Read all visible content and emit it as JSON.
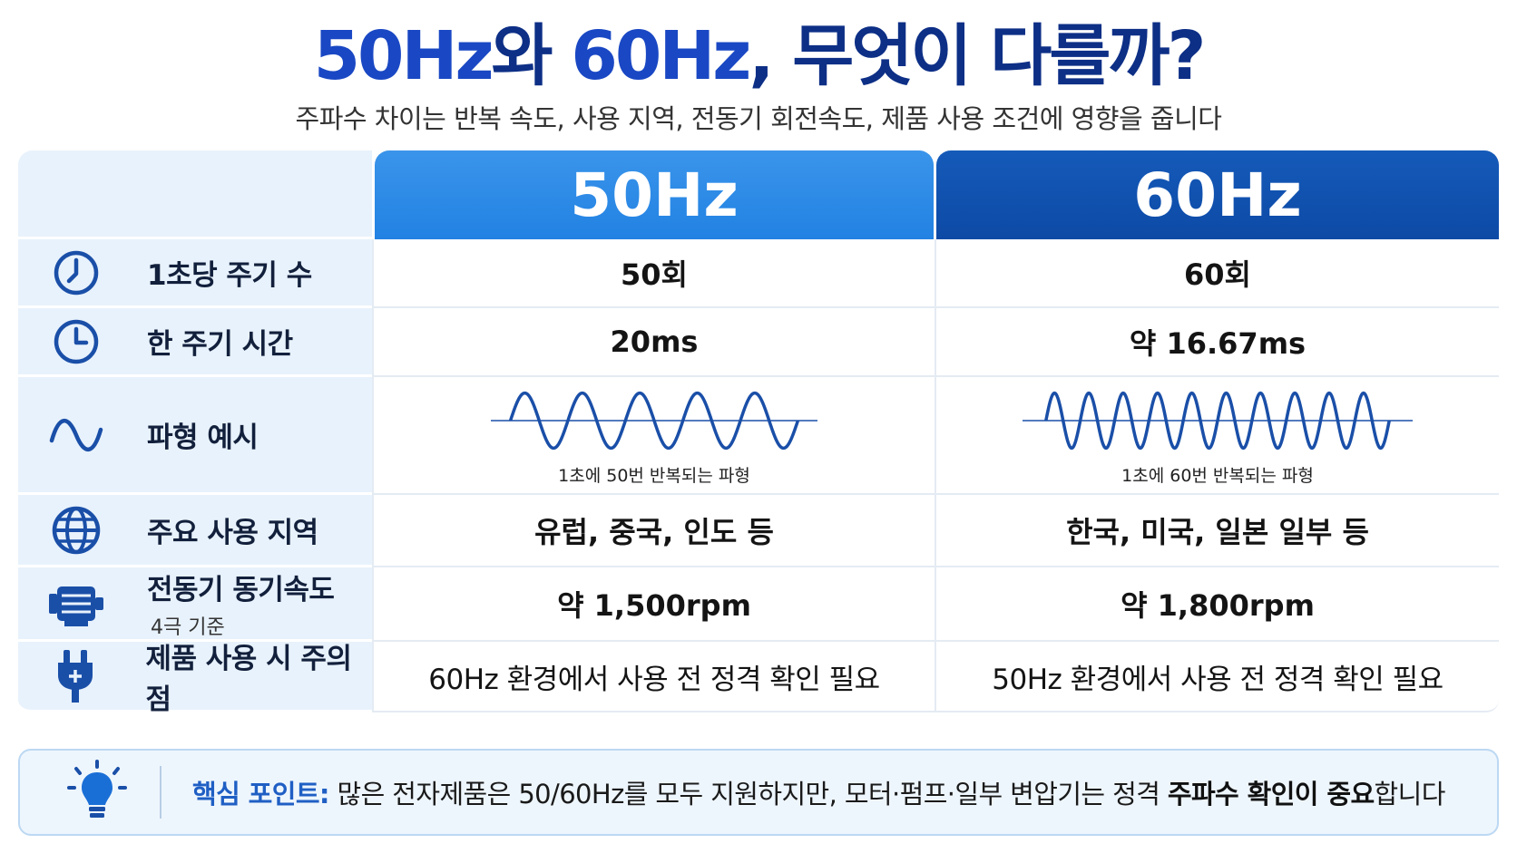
{
  "title": {
    "part1": "50Hz",
    "part2": "와 ",
    "part3": "60Hz",
    "part4": ", 무엇이 다를까?"
  },
  "subtitle": "주파수 차이는 반복 속도, 사용 지역, 전동기 회전속도, 제품 사용 조건에 영향을 줍니다",
  "columns": {
    "col50": "50Hz",
    "col60": "60Hz"
  },
  "colors": {
    "col50_header": "#2282e3",
    "col60_header": "#0d4aa6",
    "icon": "#1a4fa8",
    "wave": "#1a4fa8",
    "label_bg": "#e8f2fc"
  },
  "rows": [
    {
      "icon": "clock-icon",
      "label": "1초당 주기 수",
      "v50": "50회",
      "v60": "60회"
    },
    {
      "icon": "clock-icon",
      "label": "한 주기 시간",
      "v50": "20ms",
      "v60": "약 16.67ms"
    },
    {
      "icon": "sine-wave-icon",
      "label": "파형 예시",
      "v50_caption": "1초에 50번 반복되는 파형",
      "v60_caption": "1초에 60번 반복되는 파형",
      "v50_cycles": 5,
      "v60_cycles": 10
    },
    {
      "icon": "globe-icon",
      "label": "주요 사용 지역",
      "v50": "유럽, 중국, 인도 등",
      "v60": "한국, 미국, 일본 일부 등"
    },
    {
      "icon": "motor-icon",
      "label": "전동기 동기속도",
      "sublabel": "4극 기준",
      "v50": "약 1,500rpm",
      "v60": "약 1,800rpm"
    },
    {
      "icon": "plug-icon",
      "label": "제품 사용 시 주의점",
      "v50": "60Hz 환경에서 사용 전 정격 확인 필요",
      "v60": "50Hz 환경에서 사용 전 정격 확인 필요"
    }
  ],
  "footer": {
    "icon": "lightbulb-icon",
    "key": "핵심 포인트:",
    "text1": " 많은 전자제품은 50/60Hz를 모두 지원하지만, 모터·펌프·일부 변압기는 정격 ",
    "bold1": "주파수 확인이 중요",
    "text2": "합니다"
  }
}
